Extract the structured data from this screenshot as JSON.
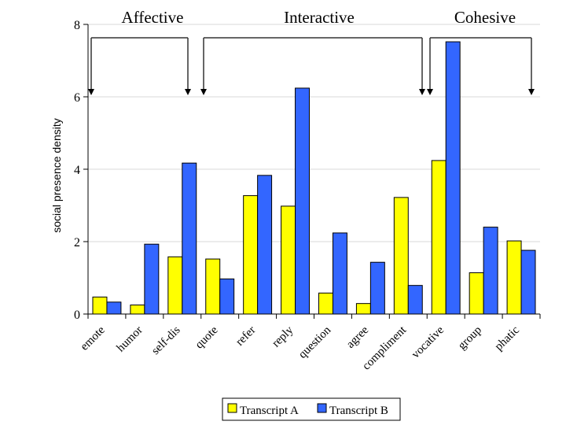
{
  "chart_data": {
    "type": "bar",
    "title": "",
    "xlabel": "",
    "ylabel": "social presence density",
    "ylim": [
      0,
      8
    ],
    "yticks": [
      0,
      2,
      4,
      6,
      8
    ],
    "grid": true,
    "categories": [
      "emote",
      "humor",
      "self-dis",
      "quote",
      "refer",
      "reply",
      "question",
      "agree",
      "compliment",
      "vocative",
      "group",
      "phatic"
    ],
    "series": [
      {
        "name": "Transcript A",
        "color": "#FFFF00",
        "values": [
          0.47,
          0.25,
          1.58,
          1.52,
          3.27,
          2.98,
          0.58,
          0.29,
          3.22,
          4.24,
          1.14,
          2.02
        ]
      },
      {
        "name": "Transcript B",
        "color": "#3366FF",
        "values": [
          0.33,
          1.93,
          4.17,
          0.97,
          3.83,
          6.24,
          2.24,
          1.43,
          0.79,
          7.52,
          2.4,
          1.76
        ]
      }
    ],
    "groups": [
      {
        "label": "Affective",
        "from_category": "emote",
        "to_category": "self-dis"
      },
      {
        "label": "Interactive",
        "from_category": "quote",
        "to_category": "compliment"
      },
      {
        "label": "Cohesive",
        "from_category": "vocative",
        "to_category": "phatic"
      }
    ],
    "legend": {
      "placement": "bottom-center",
      "entries": [
        "Transcript A",
        "Transcript B"
      ]
    }
  }
}
